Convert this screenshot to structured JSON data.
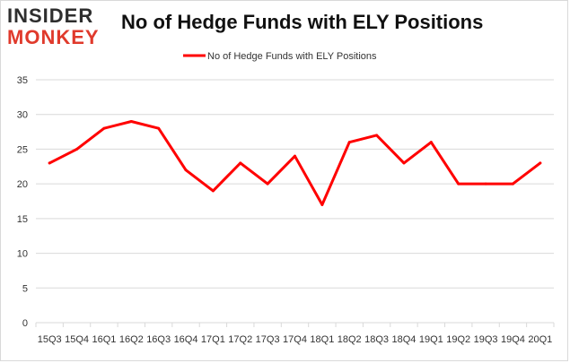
{
  "branding": {
    "logo_top": "INSIDER",
    "logo_bottom": "MONKEY"
  },
  "colors": {
    "series": "#ff0000",
    "grid": "#d9d9d9",
    "logo_dark": "#2e2e2e",
    "logo_accent": "#e03a2c"
  },
  "chart_data": {
    "type": "line",
    "title": "No of Hedge Funds with ELY Positions",
    "xlabel": "",
    "ylabel": "",
    "categories": [
      "15Q3",
      "15Q4",
      "16Q1",
      "16Q2",
      "16Q3",
      "16Q4",
      "17Q1",
      "17Q2",
      "17Q3",
      "17Q4",
      "18Q1",
      "18Q2",
      "18Q3",
      "18Q4",
      "19Q1",
      "19Q2",
      "19Q3",
      "19Q4",
      "20Q1"
    ],
    "series": [
      {
        "name": "No of Hedge Funds with ELY Positions",
        "values": [
          23,
          25,
          28,
          29,
          28,
          22,
          19,
          23,
          20,
          24,
          17,
          26,
          27,
          23,
          26,
          20,
          20,
          20,
          23
        ]
      }
    ],
    "ylim": [
      0,
      35
    ],
    "yticks": [
      0,
      5,
      10,
      15,
      20,
      25,
      30,
      35
    ],
    "grid": true,
    "legend_position": "top-center"
  }
}
